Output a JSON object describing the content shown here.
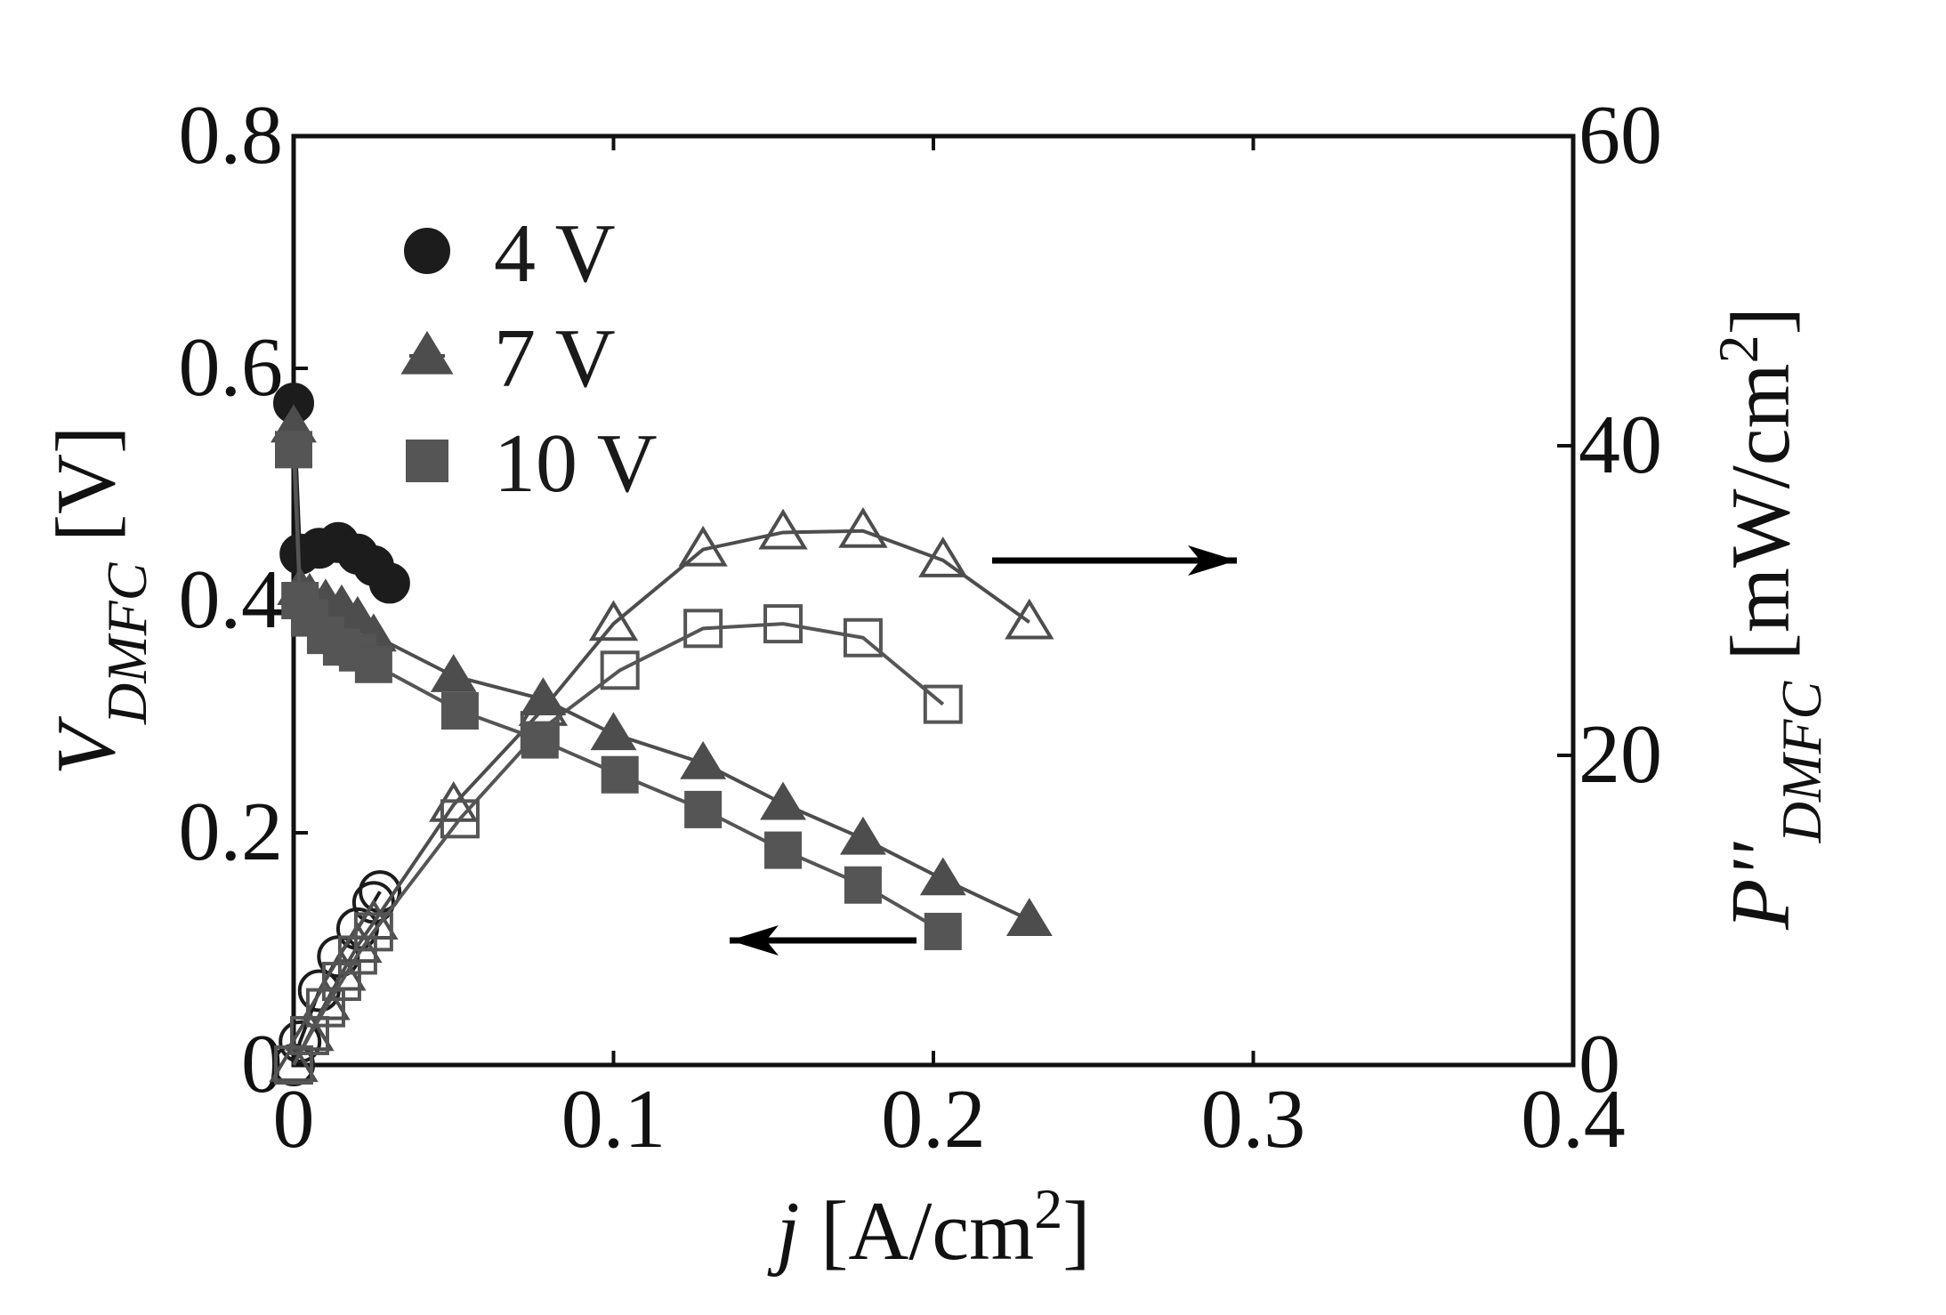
{
  "chart_data": {
    "type": "line",
    "x": {
      "label_italic": "j",
      "label_rest": " [A/cm",
      "label_sup": "2",
      "label_end": "]",
      "lim": [
        0,
        0.4
      ],
      "ticks": [
        0,
        0.1,
        0.2,
        0.3,
        0.4
      ],
      "tick_labels": [
        "0",
        "0.1",
        "0.2",
        "0.3",
        "0.4"
      ]
    },
    "y_left": {
      "label_main": "V",
      "label_sub": "DMFC",
      "label_rest": " [V]",
      "lim": [
        0,
        0.8
      ],
      "ticks": [
        0,
        0.2,
        0.4,
        0.6,
        0.8
      ],
      "tick_labels": [
        "0",
        "0.2",
        "0.4",
        "0.6",
        "0.8"
      ]
    },
    "y_right": {
      "label_main": "P''",
      "label_sub": "DMFC",
      "label_rest": " [mW/cm",
      "label_sup": "2",
      "label_end": "]",
      "lim": [
        0,
        60
      ],
      "ticks": [
        0,
        20,
        40,
        60
      ],
      "tick_labels": [
        "0",
        "20",
        "40",
        "60"
      ]
    },
    "grid": false,
    "legend_position": "top-left",
    "series": [
      {
        "name": "4 V",
        "marker": "circle",
        "color": "#1c1c1c",
        "voltage": {
          "axis": "left",
          "x": [
            0,
            0.002,
            0.008,
            0.014,
            0.02,
            0.025,
            0.03
          ],
          "y": [
            0.57,
            0.44,
            0.445,
            0.45,
            0.44,
            0.43,
            0.415
          ]
        },
        "power": {
          "axis": "right",
          "x": [
            0,
            0.002,
            0.008,
            0.014,
            0.02,
            0.025,
            0.027
          ],
          "y": [
            0,
            1.5,
            4.8,
            7.0,
            8.8,
            10.5,
            11.2
          ]
        }
      },
      {
        "name": "7 V",
        "marker": "triangle",
        "color": "#4d4d4d",
        "voltage": {
          "axis": "left",
          "x": [
            0,
            0.002,
            0.005,
            0.01,
            0.015,
            0.02,
            0.025,
            0.05,
            0.078,
            0.1,
            0.128,
            0.153,
            0.178,
            0.203,
            0.23
          ],
          "y": [
            0.55,
            0.41,
            0.405,
            0.4,
            0.395,
            0.385,
            0.37,
            0.335,
            0.315,
            0.285,
            0.26,
            0.225,
            0.195,
            0.16,
            0.125
          ]
        },
        "power": {
          "axis": "right",
          "x": [
            0,
            0.005,
            0.01,
            0.015,
            0.02,
            0.025,
            0.05,
            0.078,
            0.1,
            0.128,
            0.153,
            0.178,
            0.203,
            0.23
          ],
          "y": [
            0,
            2.0,
            4.0,
            5.9,
            7.7,
            9.2,
            16.8,
            23.0,
            28.5,
            33.3,
            34.4,
            34.5,
            32.6,
            28.6
          ]
        }
      },
      {
        "name": "10 V",
        "marker": "square",
        "color": "#555555",
        "voltage": {
          "axis": "left",
          "x": [
            0,
            0.002,
            0.005,
            0.01,
            0.015,
            0.02,
            0.025,
            0.052,
            0.077,
            0.102,
            0.128,
            0.153,
            0.178,
            0.203
          ],
          "y": [
            0.53,
            0.4,
            0.385,
            0.37,
            0.36,
            0.355,
            0.345,
            0.305,
            0.28,
            0.25,
            0.22,
            0.185,
            0.155,
            0.115
          ]
        },
        "power": {
          "axis": "right",
          "x": [
            0,
            0.005,
            0.01,
            0.015,
            0.02,
            0.025,
            0.052,
            0.077,
            0.102,
            0.128,
            0.153,
            0.178,
            0.203
          ],
          "y": [
            0,
            1.9,
            3.7,
            5.4,
            7.1,
            8.6,
            15.9,
            21.6,
            25.5,
            28.2,
            28.5,
            27.6,
            23.3
          ]
        }
      }
    ],
    "annotations": [
      {
        "type": "arrow",
        "direction": "left",
        "points_to": "left axis (voltage curves)"
      },
      {
        "type": "arrow",
        "direction": "right",
        "points_to": "right axis (power curves)"
      }
    ]
  }
}
